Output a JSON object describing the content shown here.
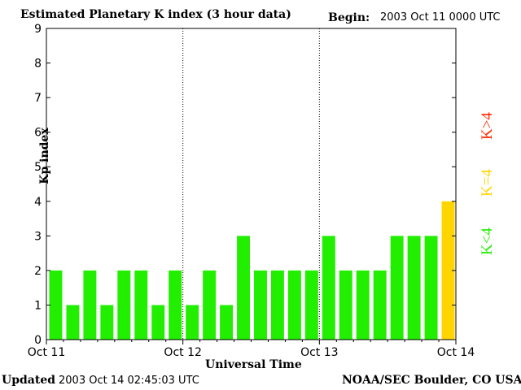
{
  "header": {
    "title": "Estimated Planetary K index (3 hour data)",
    "begin_label": "Begin:",
    "begin_value": "2003 Oct 11 0000 UTC"
  },
  "footer": {
    "updated_label": "Updated",
    "updated_value": "2003 Oct 14 02:45:03 UTC",
    "credit": "NOAA/SEC Boulder, CO USA"
  },
  "legend": {
    "greater": "K>4",
    "equal": "K=4",
    "less": "K<4",
    "greater_color": "#ff2a00",
    "equal_color": "#ffd500",
    "less_color": "#22ee00"
  },
  "chart_data": {
    "type": "bar",
    "title": "Estimated Planetary K index (3 hour data)",
    "xlabel": "Universal Time",
    "ylabel": "Kp index",
    "ylim": [
      0,
      9
    ],
    "yticks": [
      "0",
      "1",
      "2",
      "3",
      "4",
      "5",
      "6",
      "7",
      "8",
      "9"
    ],
    "xticks": [
      "Oct 11",
      "Oct 12",
      "Oct 13",
      "Oct 14"
    ],
    "day_separators": true,
    "grid": false,
    "values": [
      2,
      1,
      2,
      1,
      2,
      2,
      1,
      2,
      1,
      2,
      1,
      3,
      2,
      2,
      2,
      2,
      3,
      2,
      2,
      2,
      3,
      3,
      3,
      4
    ],
    "colors": {
      "below_4": "#22ee00",
      "equal_4": "#ffd500",
      "above_4": "#ff2a00"
    }
  }
}
